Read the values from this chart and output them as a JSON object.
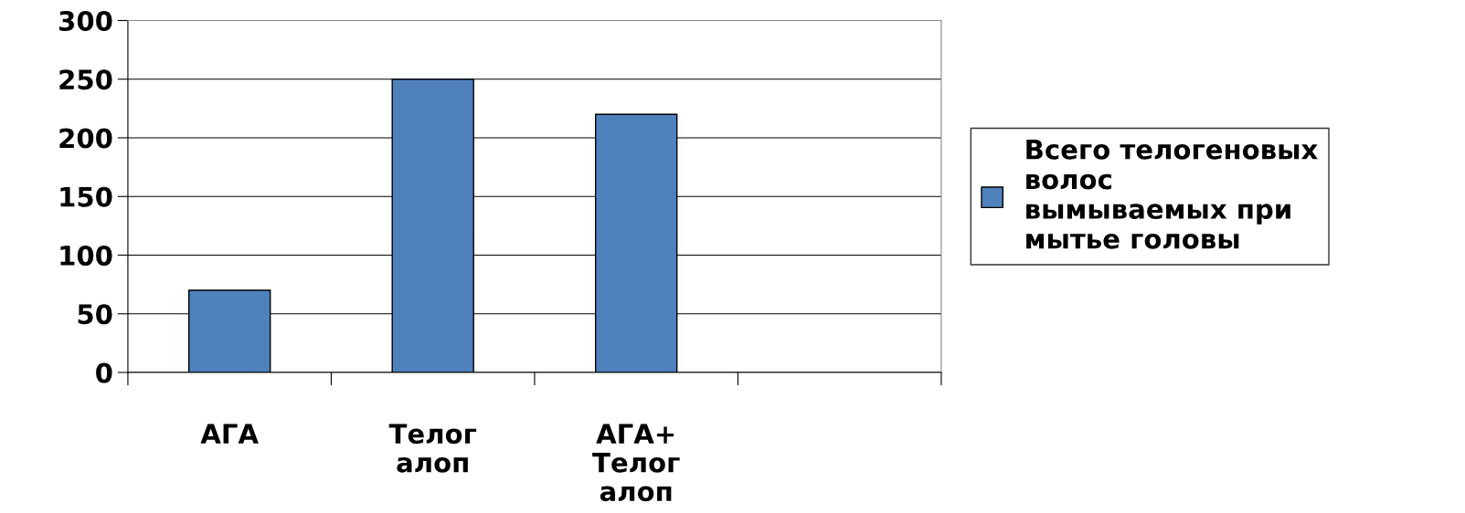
{
  "chart_data": {
    "type": "bar",
    "categories": [
      "АГА",
      "Телог\nалоп",
      "АГА+\nТелог\nалоп",
      null
    ],
    "series": [
      {
        "name": "Всего телогеновых\nволос\nвымываемых при\nмытье головы",
        "color": "#4f81bd",
        "values": [
          70,
          250,
          220,
          null
        ]
      }
    ],
    "ylim": [
      0,
      300
    ],
    "yticks": [
      0,
      50,
      100,
      150,
      200,
      250,
      300
    ],
    "grid": "y",
    "legend": "right"
  }
}
